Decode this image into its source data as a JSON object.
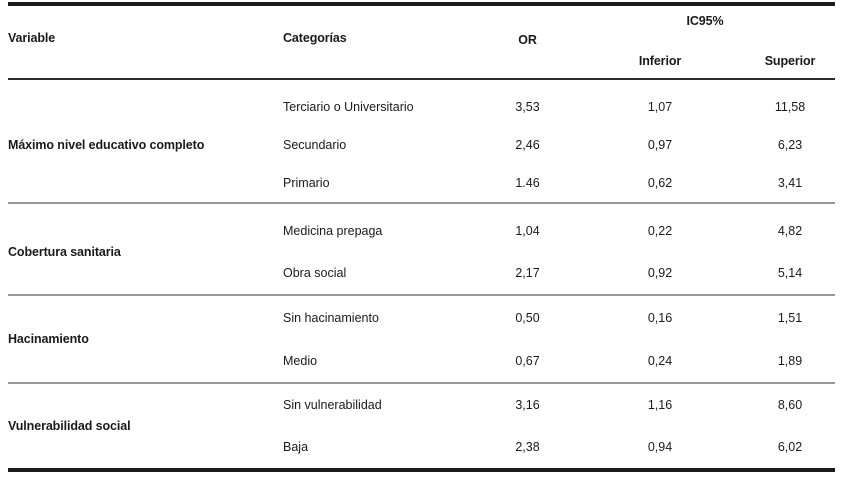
{
  "header": {
    "variable": "Variable",
    "categorias": "Categorías",
    "or": "OR",
    "ic95": "IC95%",
    "inferior": "Inferior",
    "superior": "Superior"
  },
  "sections": [
    {
      "variable": "Máximo nivel educativo completo",
      "rows": [
        {
          "category": "Terciario o Universitario",
          "or": "3,53",
          "inferior": "1,07",
          "superior": "11,58"
        },
        {
          "category": "Secundario",
          "or": "2,46",
          "inferior": "0,97",
          "superior": "6,23"
        },
        {
          "category": "Primario",
          "or": "1.46",
          "inferior": "0,62",
          "superior": "3,41"
        }
      ]
    },
    {
      "variable": "Cobertura sanitaria",
      "rows": [
        {
          "category": "Medicina prepaga",
          "or": "1,04",
          "inferior": "0,22",
          "superior": "4,82"
        },
        {
          "category": "Obra social",
          "or": "2,17",
          "inferior": "0,92",
          "superior": "5,14"
        }
      ]
    },
    {
      "variable": "Hacinamiento",
      "rows": [
        {
          "category": "Sin hacinamiento",
          "or": "0,50",
          "inferior": "0,16",
          "superior": "1,51"
        },
        {
          "category": "Medio",
          "or": "0,67",
          "inferior": "0,24",
          "superior": "1,89"
        }
      ]
    },
    {
      "variable": "Vulnerabilidad social",
      "rows": [
        {
          "category": "Sin vulnerabilidad",
          "or": "3,16",
          "inferior": "1,16",
          "superior": "8,60"
        },
        {
          "category": "Baja",
          "or": "2,38",
          "inferior": "0,94",
          "superior": "6,02"
        }
      ]
    }
  ],
  "colors": {
    "text": "#1a1a1a",
    "rule_dark": "#1c1c1c",
    "rule_gray": "#9a9a9a",
    "background": "#ffffff"
  }
}
